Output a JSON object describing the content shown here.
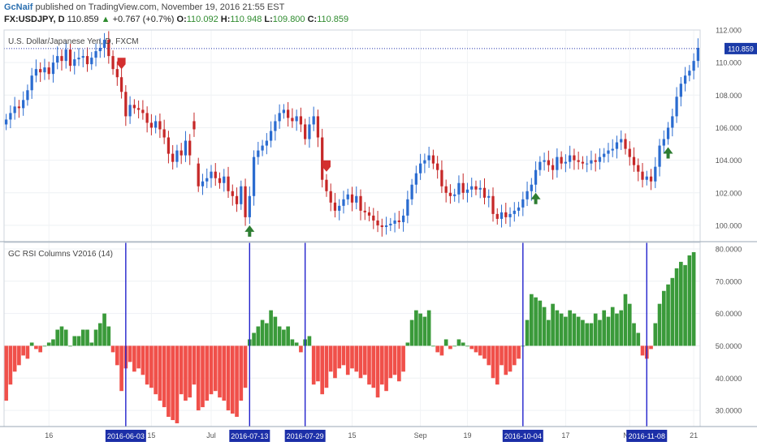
{
  "header": {
    "author": "GcNaif",
    "published_text": " published on TradingView.com, November 19, 2016 21:55 EST",
    "symbol": "FX:USDJPY, D",
    "last": "110.859",
    "change_arrow": "▲",
    "change": "+0.767 (+0.7%)",
    "open_label": "O:",
    "open": "110.092",
    "high_label": "H:",
    "high": "110.948",
    "low_label": "L:",
    "low": "109.800",
    "close_label": "C:",
    "close": "110.859"
  },
  "colors": {
    "bull": "#2b6cd0",
    "bear": "#c62828",
    "rsi_up": "#3a9a3a",
    "rsi_down": "#f0504a",
    "vline": "#2222cc",
    "price_line": "#2233aa",
    "arrow_up": "#2e7d32",
    "arrow_down": "#d32f2f"
  },
  "chart_data": [
    {
      "type": "candlestick",
      "title": "U.S. Dollar/Japanese Yen, D, FXCM",
      "ylim": [
        99,
        112
      ],
      "y_ticks": [
        "112.000",
        "110.000",
        "108.000",
        "106.000",
        "104.000",
        "102.000",
        "100.000"
      ],
      "last_price_label": "110.859",
      "last_price": 110.859,
      "closes": [
        106.5,
        106.9,
        107.3,
        107.2,
        107.7,
        108.3,
        109.2,
        109.6,
        109.4,
        109.7,
        109.3,
        110.0,
        110.4,
        110.1,
        110.8,
        109.8,
        110.2,
        110.3,
        110.4,
        109.9,
        110.3,
        110.7,
        110.9,
        111.4,
        110.4,
        109.6,
        109.1,
        108.2,
        106.7,
        107.4,
        107.2,
        107.1,
        106.9,
        106.3,
        106.0,
        106.4,
        105.9,
        105.4,
        104.4,
        103.9,
        104.6,
        104.3,
        105.2,
        104.3,
        105.9,
        102.4,
        102.7,
        102.9,
        103.3,
        102.9,
        102.6,
        103.0,
        102.1,
        101.8,
        101.3,
        102.4,
        100.5,
        101.8,
        104.2,
        104.6,
        104.9,
        105.2,
        105.8,
        106.4,
        106.9,
        107.1,
        106.6,
        106.4,
        106.7,
        106.2,
        105.3,
        106.2,
        106.7,
        105.4,
        102.8,
        102.1,
        101.4,
        100.9,
        101.2,
        101.6,
        101.9,
        101.4,
        101.8,
        100.9,
        100.8,
        100.6,
        100.3,
        100.0,
        99.9,
        100.0,
        100.1,
        100.3,
        100.2,
        100.6,
        101.6,
        102.5,
        103.2,
        103.8,
        104.0,
        104.3,
        103.8,
        103.4,
        102.4,
        102.0,
        101.8,
        101.9,
        102.6,
        102.0,
        102.2,
        102.4,
        102.2,
        102.3,
        101.7,
        101.8,
        100.7,
        100.4,
        100.8,
        100.5,
        100.7,
        100.9,
        101.1,
        101.6,
        102.1,
        102.5,
        103.4,
        103.9,
        104.0,
        103.7,
        103.4,
        104.2,
        103.8,
        103.9,
        104.3,
        104.0,
        103.9,
        103.8,
        103.8,
        104.0,
        103.9,
        104.2,
        104.4,
        104.6,
        104.7,
        105.1,
        105.3,
        104.7,
        104.2,
        103.7,
        103.3,
        102.8,
        103.0,
        102.7,
        103.6,
        104.9,
        105.3,
        106.0,
        106.7,
        107.9,
        108.7,
        109.2,
        109.5,
        110.1,
        110.9
      ],
      "opens": [
        106.2,
        106.5,
        106.9,
        107.3,
        107.2,
        107.7,
        108.3,
        109.2,
        109.6,
        109.4,
        109.7,
        109.3,
        110.0,
        110.4,
        110.1,
        110.8,
        109.8,
        110.2,
        110.3,
        110.4,
        109.9,
        110.3,
        110.7,
        110.9,
        111.4,
        110.4,
        109.6,
        109.1,
        108.2,
        106.7,
        107.4,
        107.2,
        107.1,
        106.9,
        106.3,
        106.0,
        106.4,
        105.9,
        105.4,
        104.4,
        103.9,
        104.6,
        104.3,
        105.2,
        106.4,
        103.8,
        102.4,
        102.7,
        102.9,
        103.3,
        102.9,
        102.6,
        103.0,
        102.1,
        101.8,
        101.3,
        102.4,
        100.5,
        101.8,
        104.2,
        104.6,
        104.9,
        105.2,
        105.8,
        106.4,
        106.9,
        107.1,
        106.6,
        106.4,
        106.7,
        106.2,
        105.3,
        106.2,
        106.7,
        105.4,
        102.8,
        102.1,
        101.4,
        100.9,
        101.2,
        101.6,
        101.9,
        101.4,
        101.8,
        100.9,
        100.8,
        100.6,
        100.3,
        100.0,
        99.9,
        100.0,
        100.1,
        100.3,
        100.2,
        100.6,
        101.6,
        102.5,
        103.2,
        103.8,
        104.0,
        104.3,
        103.8,
        103.4,
        102.4,
        102.0,
        101.8,
        101.9,
        102.6,
        102.0,
        102.2,
        102.4,
        102.2,
        102.3,
        101.7,
        101.8,
        100.7,
        100.4,
        100.8,
        100.5,
        100.7,
        100.9,
        101.1,
        101.6,
        102.1,
        102.5,
        103.4,
        103.9,
        104.0,
        103.7,
        103.4,
        104.2,
        103.8,
        103.9,
        104.3,
        104.0,
        103.9,
        103.8,
        103.8,
        104.0,
        103.9,
        104.2,
        104.4,
        104.6,
        104.7,
        105.1,
        105.3,
        104.7,
        104.2,
        103.7,
        103.3,
        102.8,
        103.0,
        102.7,
        103.6,
        104.9,
        105.3,
        106.0,
        106.7,
        107.9,
        108.7,
        109.2,
        109.5,
        110.1
      ],
      "signals": [
        {
          "index": 27,
          "dir": "down"
        },
        {
          "index": 57,
          "dir": "up"
        },
        {
          "index": 75,
          "dir": "down"
        },
        {
          "index": 124,
          "dir": "up"
        },
        {
          "index": 155,
          "dir": "up"
        }
      ]
    },
    {
      "type": "bar",
      "title": "GC RSI Columns V2016 (14)",
      "baseline": 50,
      "ylim": [
        25,
        82
      ],
      "y_ticks": [
        "80.0000",
        "70.0000",
        "60.0000",
        "50.0000",
        "40.0000",
        "30.0000"
      ],
      "values": [
        33,
        38,
        42,
        44,
        47,
        46,
        51,
        49,
        48,
        50,
        51,
        52,
        55,
        56,
        55,
        50,
        53,
        53,
        55,
        55,
        51,
        55,
        57,
        60,
        56,
        48,
        44,
        36,
        43,
        45,
        42,
        43,
        41,
        38,
        37,
        35,
        33,
        31,
        28,
        27,
        26,
        35,
        33,
        34,
        38,
        30,
        31,
        33,
        35,
        36,
        34,
        33,
        30,
        29,
        28,
        33,
        37,
        52,
        54,
        56,
        58,
        57,
        61,
        59,
        56,
        55,
        56,
        52,
        51,
        48,
        52,
        53,
        38,
        39,
        35,
        37,
        42,
        40,
        43,
        44,
        41,
        43,
        42,
        40,
        41,
        38,
        37,
        34,
        38,
        36,
        40,
        41,
        39,
        42,
        51,
        58,
        61,
        60,
        59,
        61,
        50,
        48,
        47,
        52,
        49,
        50,
        52,
        51,
        50,
        49,
        48,
        47,
        46,
        44,
        40,
        38,
        44,
        41,
        42,
        44,
        46,
        50,
        58,
        66,
        65,
        64,
        62,
        58,
        63,
        61,
        60,
        59,
        61,
        60,
        59,
        58,
        57,
        57,
        60,
        58,
        61,
        59,
        62,
        60,
        61,
        66,
        63,
        57,
        54,
        47,
        46,
        49,
        57,
        63,
        67,
        69,
        71,
        74,
        76,
        75,
        78,
        79
      ],
      "markers": [
        {
          "label": "2016-06-03",
          "index": 28
        },
        {
          "label": "2016-07-13",
          "index": 57
        },
        {
          "label": "2016-07-29",
          "index": 70
        },
        {
          "label": "2016-10-04",
          "index": 121
        },
        {
          "label": "2016-11-08",
          "index": 150
        }
      ]
    }
  ],
  "x_axis": {
    "labels": [
      {
        "text": "16",
        "index": 10
      },
      {
        "text": "15",
        "index": 34
      },
      {
        "text": "Jul",
        "index": 48
      },
      {
        "text": "15",
        "index": 81
      },
      {
        "text": "Sep",
        "index": 97
      },
      {
        "text": "19",
        "index": 108
      },
      {
        "text": "17",
        "index": 131
      },
      {
        "text": "Nov",
        "index": 146
      },
      {
        "text": "21",
        "index": 161
      }
    ]
  }
}
